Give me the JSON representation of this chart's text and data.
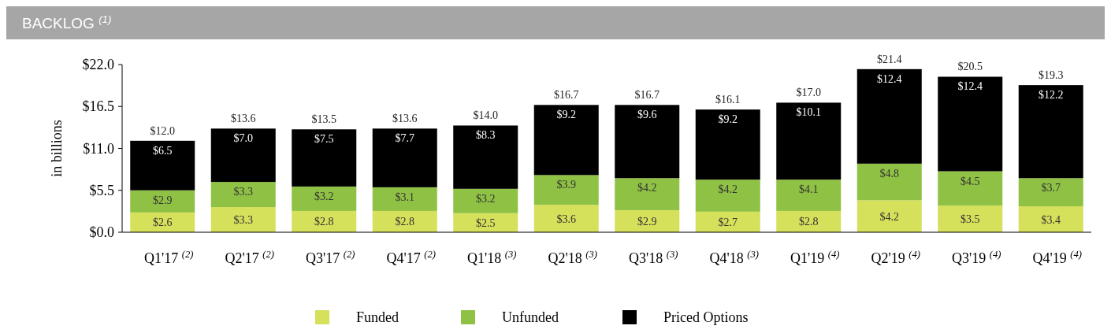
{
  "chart_data": {
    "type": "bar",
    "title": "BACKLOG $^{(1)}$",
    "ylabel": "in billions",
    "stacked": true,
    "categories": [
      "Q1'17 $^{(2)}$",
      "Q2'17 $^{(2)}$",
      "Q3'17 $^{(2)}$",
      "Q4'17 $^{(2)}$",
      "Q1'18 $^{(3)}$",
      "Q2'18 $^{(3)}$",
      "Q3'18 $^{(3)}$",
      "Q4'18 $^{(3)}$",
      "Q1'19 $^{(4)}$",
      "Q2'19 $^{(4)}$",
      "Q3'19 $^{(4)}$",
      "Q4'19 $^{(4)}$"
    ],
    "series": [
      {
        "name": "Funded",
        "color": "#d5e05b",
        "values": [
          2.6,
          3.3,
          2.8,
          2.8,
          2.5,
          3.6,
          2.9,
          2.7,
          2.8,
          4.2,
          3.5,
          3.4
        ],
        "value_labels": [
          "$2.6",
          "$3.3",
          "$2.8",
          "$2.8",
          "$2.5",
          "$3.6",
          "$2.9",
          "$2.7",
          "$2.8",
          "$4.2",
          "$3.5",
          "$3.4"
        ]
      },
      {
        "name": "Unfunded",
        "color": "#8fc144",
        "values": [
          2.9,
          3.3,
          3.2,
          3.1,
          3.2,
          3.9,
          4.2,
          4.2,
          4.1,
          4.8,
          4.5,
          3.7
        ],
        "value_labels": [
          "$2.9",
          "$3.3",
          "$3.2",
          "$3.1",
          "$3.2",
          "$3.9",
          "$4.2",
          "$4.2",
          "$4.1",
          "$4.8",
          "$4.5",
          "$3.7"
        ]
      },
      {
        "name": "Priced Options",
        "color": "#000000",
        "values": [
          6.5,
          7.0,
          7.5,
          7.7,
          8.3,
          9.2,
          9.6,
          9.2,
          10.1,
          12.4,
          12.4,
          12.2
        ],
        "value_labels": [
          "$6.5",
          "$7.0",
          "$7.5",
          "$7.7",
          "$8.3",
          "$9.2",
          "$9.6",
          "$9.2",
          "$10.1",
          "$12.4",
          "$12.4",
          "$12.2"
        ]
      }
    ],
    "totals": [
      "$12.0",
      "$13.6",
      "$13.5",
      "$13.6",
      "$14.0",
      "$16.7",
      "$16.7",
      "$16.1",
      "$17.0",
      "$21.4",
      "$20.5",
      "$19.3"
    ],
    "ylim": [
      0,
      22
    ],
    "yticks": [
      {
        "value": 0,
        "label": "$0.0"
      },
      {
        "value": 5.5,
        "label": "$5.5"
      },
      {
        "value": 11,
        "label": "$11.0"
      },
      {
        "value": 16.5,
        "label": "$16.5"
      },
      {
        "value": 22,
        "label": "$22.0"
      }
    ],
    "grid": false,
    "legend": "bottom"
  }
}
